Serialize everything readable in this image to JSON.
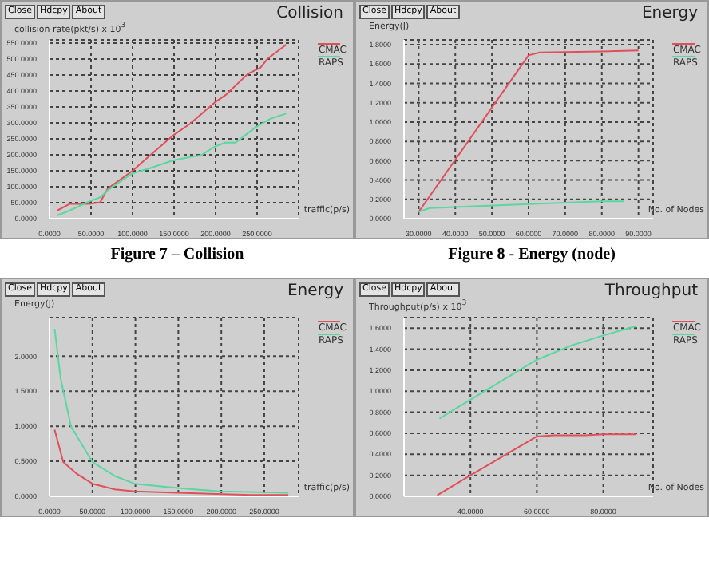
{
  "chart_data": [
    {
      "type": "line",
      "title": "Collision",
      "ylabel": "collision rate(pkt/s) x 10$^{3}$",
      "xlabel": "traffic(p/s)",
      "annotations": [
        "Close",
        "Hdcpy",
        "About",
        "Figure 7 – Collision"
      ],
      "xlim": [
        0,
        300
      ],
      "xticks": [
        {
          "value": 0,
          "label": "0.0000"
        },
        {
          "value": 50,
          "label": "50.0000"
        },
        {
          "value": 100,
          "label": "100.0000"
        },
        {
          "value": 150,
          "label": "150.0000"
        },
        {
          "value": 200,
          "label": "200.0000"
        },
        {
          "value": 250,
          "label": "250.0000"
        }
      ],
      "ylim": [
        0,
        560
      ],
      "yticks": [
        {
          "value": 0,
          "label": "0.0000"
        },
        {
          "value": 50,
          "label": "50.0000"
        },
        {
          "value": 100,
          "label": "100.0000"
        },
        {
          "value": 150,
          "label": "150.0000"
        },
        {
          "value": 200,
          "label": "200.0000"
        },
        {
          "value": 250,
          "label": "250.0000"
        },
        {
          "value": 300,
          "label": "300.0000"
        },
        {
          "value": 350,
          "label": "350.0000"
        },
        {
          "value": 400,
          "label": "400.0000"
        },
        {
          "value": 450,
          "label": "450.0000"
        },
        {
          "value": 500,
          "label": "500.0000"
        },
        {
          "value": 550,
          "label": "550.0000"
        }
      ],
      "grid": true,
      "legend": "top right",
      "series": [
        {
          "name": "CMAC",
          "color": "#e0505a",
          "x": [
            9,
            24,
            48,
            61,
            70,
            100,
            121,
            148,
            169,
            200,
            212,
            239,
            254,
            263,
            285
          ],
          "values": [
            25,
            46,
            46,
            51,
            94,
            150,
            198,
            259,
            297,
            366,
            387,
            454,
            473,
            502,
            545
          ]
        },
        {
          "name": "RAPS",
          "color": "#5ad7a0",
          "x": [
            9,
            24,
            48,
            61,
            70,
            100,
            121,
            148,
            169,
            182,
            200,
            212,
            224,
            248,
            266,
            285
          ],
          "values": [
            10,
            25,
            54,
            67,
            89,
            142,
            158,
            182,
            193,
            198,
            227,
            238,
            238,
            286,
            313,
            329
          ]
        }
      ]
    },
    {
      "type": "line",
      "title": "Energy",
      "ylabel": "Energy(J)",
      "xlabel": "No. of Nodes",
      "annotations": [
        "Close",
        "Hdcpy",
        "About",
        "Figure 8 - Energy (node)"
      ],
      "xlim": [
        26,
        94
      ],
      "xticks": [
        {
          "value": 30,
          "label": "30.0000"
        },
        {
          "value": 40,
          "label": "40.0000"
        },
        {
          "value": 50,
          "label": "50.0000"
        },
        {
          "value": 60,
          "label": "60.0000"
        },
        {
          "value": 70,
          "label": "70.0000"
        },
        {
          "value": 80,
          "label": "80.0000"
        },
        {
          "value": 90,
          "label": "90.0000"
        }
      ],
      "ylim": [
        0,
        1.85
      ],
      "yticks": [
        {
          "value": 0,
          "label": "0.0000"
        },
        {
          "value": 0.2,
          "label": "0.2000"
        },
        {
          "value": 0.4,
          "label": "0.4000"
        },
        {
          "value": 0.6,
          "label": "0.6000"
        },
        {
          "value": 0.8,
          "label": "0.8000"
        },
        {
          "value": 1,
          "label": "1.0000"
        },
        {
          "value": 1.2,
          "label": "1.2000"
        },
        {
          "value": 1.4,
          "label": "1.4000"
        },
        {
          "value": 1.6,
          "label": "1.6000"
        },
        {
          "value": 1.8,
          "label": "1.8000"
        }
      ],
      "grid": true,
      "legend": "top right",
      "series": [
        {
          "name": "CMAC",
          "color": "#e0505a",
          "x": [
            30,
            60,
            63,
            80,
            90
          ],
          "values": [
            0.07,
            1.69,
            1.72,
            1.73,
            1.74
          ]
        },
        {
          "name": "RAPS",
          "color": "#5ad7a0",
          "x": [
            30,
            33,
            60,
            80,
            86
          ],
          "values": [
            0.07,
            0.11,
            0.15,
            0.18,
            0.18
          ]
        }
      ]
    },
    {
      "type": "line",
      "title": "Energy",
      "ylabel": "Energy(J)",
      "xlabel": "traffic(p/s)",
      "annotations": [
        "Close",
        "Hdcpy",
        "About"
      ],
      "xlim": [
        0,
        290
      ],
      "xticks": [
        {
          "value": 0,
          "label": "0.0000"
        },
        {
          "value": 50,
          "label": "50.0000"
        },
        {
          "value": 100,
          "label": "100.0000"
        },
        {
          "value": 150,
          "label": "150.0000"
        },
        {
          "value": 200,
          "label": "200.0000"
        },
        {
          "value": 250,
          "label": "250.0000"
        }
      ],
      "ylim": [
        0,
        2.55
      ],
      "yticks": [
        {
          "value": 0,
          "label": "0.0000"
        },
        {
          "value": 0.5,
          "label": "0.5000"
        },
        {
          "value": 1,
          "label": "1.0000"
        },
        {
          "value": 1.5,
          "label": "1.5000"
        },
        {
          "value": 2,
          "label": "2.0000"
        }
      ],
      "grid": true,
      "legend": "top right",
      "series": [
        {
          "name": "CMAC",
          "color": "#e0505a",
          "x": [
            6,
            16,
            32,
            50,
            76,
            99,
            149,
            234,
            278
          ],
          "values": [
            0.95,
            0.49,
            0.32,
            0.18,
            0.1,
            0.07,
            0.05,
            0.02,
            0.02
          ]
        },
        {
          "name": "RAPS",
          "color": "#5ad7a0",
          "x": [
            6,
            13,
            25,
            50,
            76,
            99,
            149,
            199,
            278
          ],
          "values": [
            2.39,
            1.68,
            1,
            0.49,
            0.29,
            0.18,
            0.12,
            0.07,
            0.05
          ]
        }
      ]
    },
    {
      "type": "line",
      "title": "Throughput",
      "ylabel": "Throughput(p/s) x 10$^{3}$",
      "xlabel": "No. of Nodes",
      "annotations": [
        "Close",
        "Hdcpy",
        "About"
      ],
      "xlim": [
        20,
        95
      ],
      "xticks": [
        {
          "value": 40,
          "label": "40.0000"
        },
        {
          "value": 60,
          "label": "60.0000"
        },
        {
          "value": 80,
          "label": "80.0000"
        }
      ],
      "ylim": [
        0,
        1.7
      ],
      "yticks": [
        {
          "value": 0,
          "label": "0.0000"
        },
        {
          "value": 0.2,
          "label": "0.2000"
        },
        {
          "value": 0.4,
          "label": "0.4000"
        },
        {
          "value": 0.6,
          "label": "0.6000"
        },
        {
          "value": 0.8,
          "label": "0.8000"
        },
        {
          "value": 1,
          "label": "1.0000"
        },
        {
          "value": 1.2,
          "label": "1.2000"
        },
        {
          "value": 1.4,
          "label": "1.4000"
        },
        {
          "value": 1.6,
          "label": "1.6000"
        }
      ],
      "grid": true,
      "legend": "top right",
      "series": [
        {
          "name": "CMAC",
          "color": "#e0505a",
          "x": [
            30,
            40,
            60,
            65,
            74.5,
            80,
            90
          ],
          "values": [
            0.01,
            0.2,
            0.57,
            0.58,
            0.58,
            0.59,
            0.59
          ]
        },
        {
          "name": "RAPS",
          "color": "#5ad7a0",
          "x": [
            30.7,
            40,
            60,
            70,
            80,
            90
          ],
          "values": [
            0.74,
            0.92,
            1.3,
            1.43,
            1.53,
            1.62
          ]
        }
      ]
    }
  ]
}
